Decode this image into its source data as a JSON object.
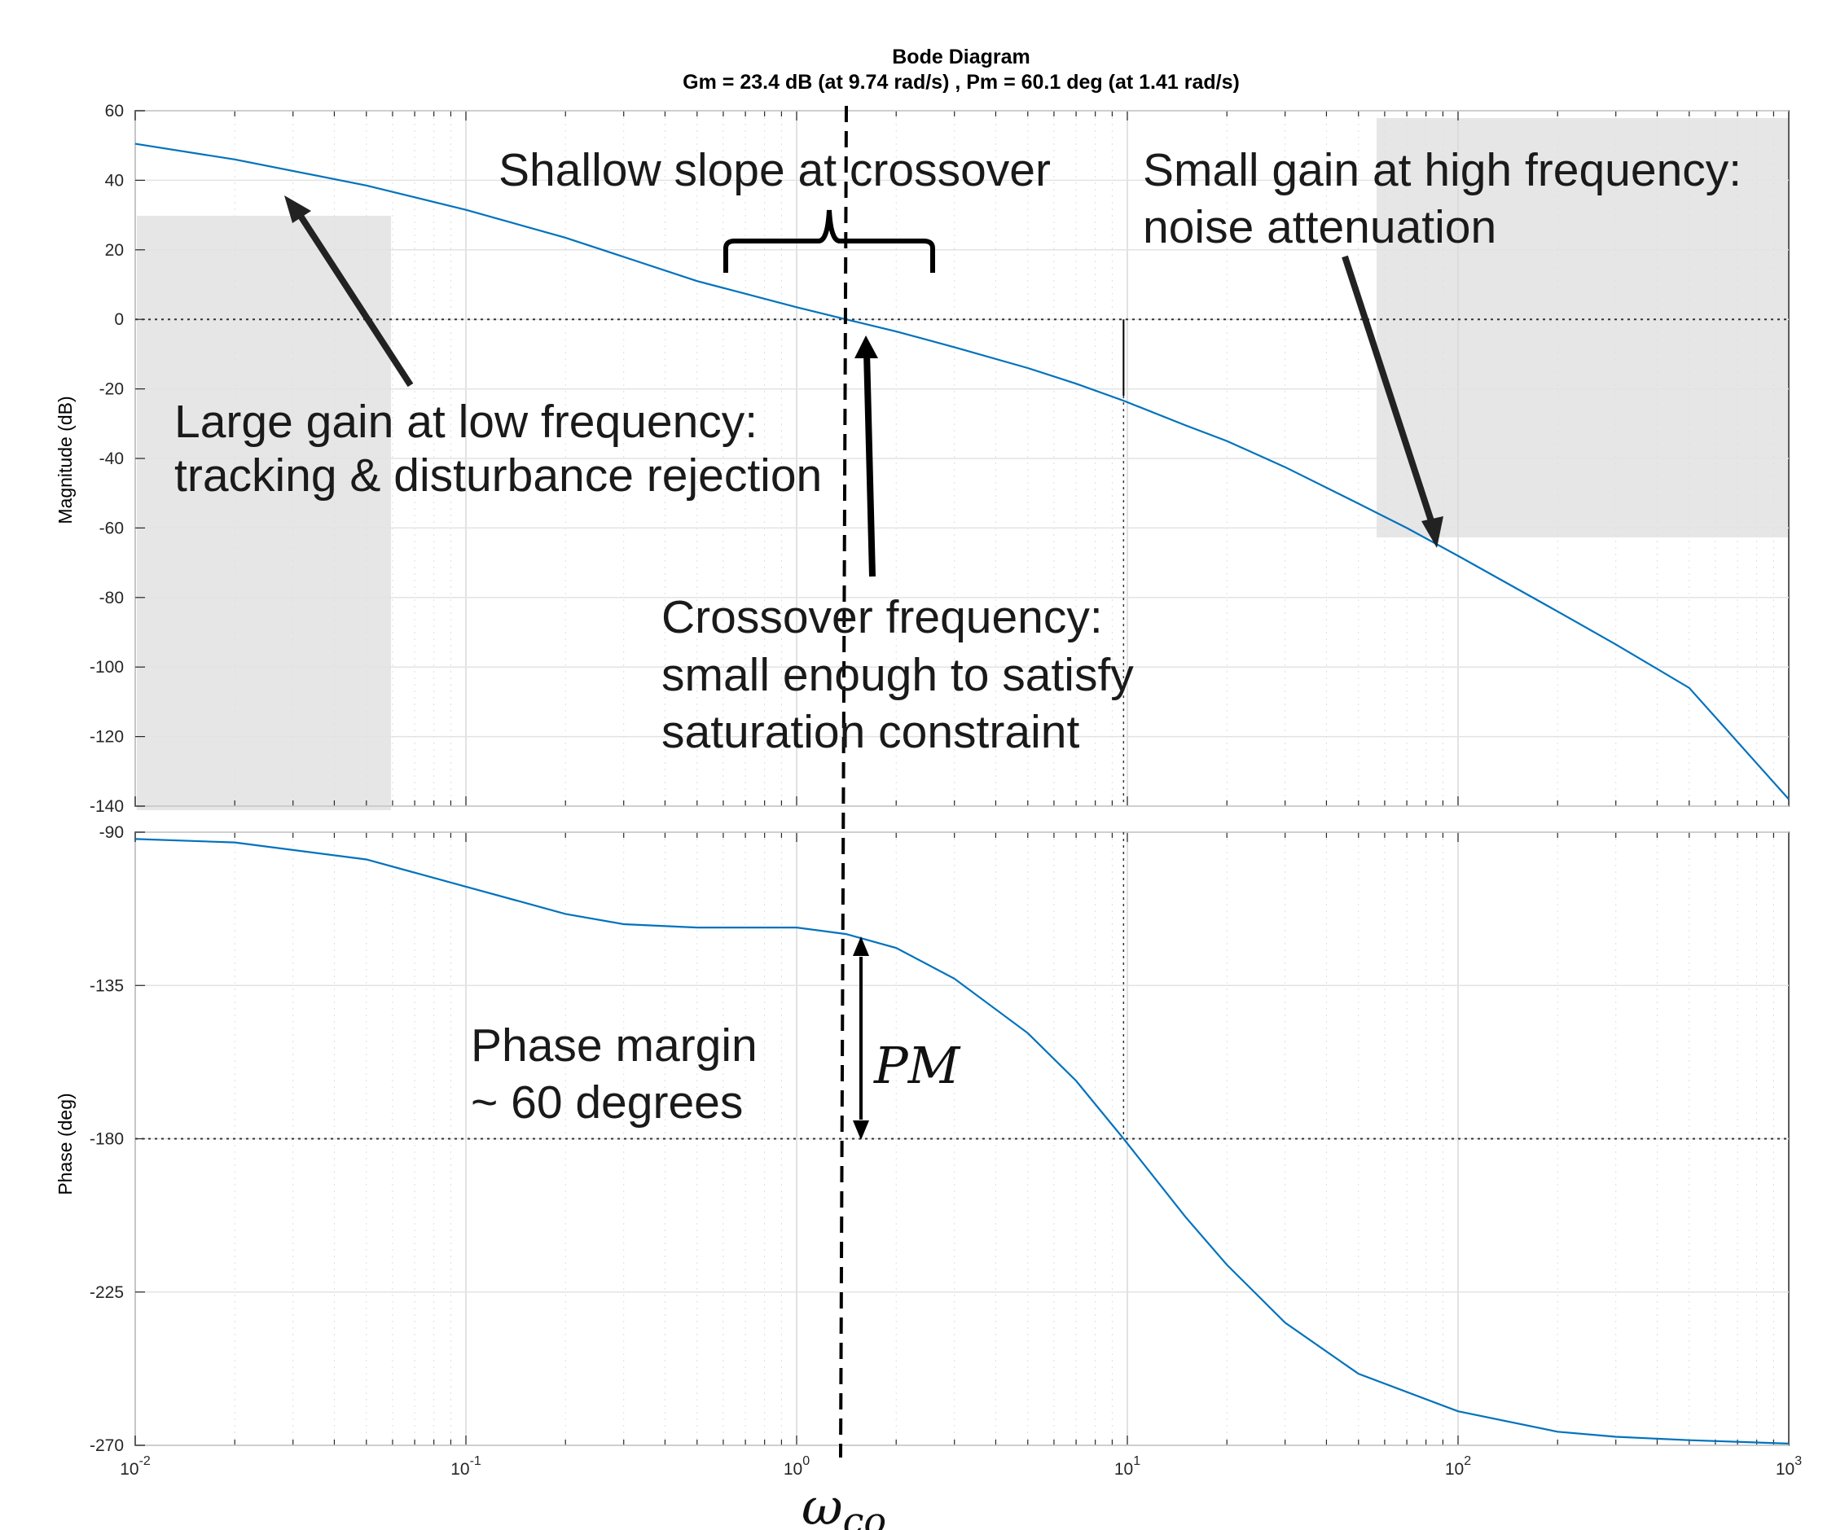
{
  "chart_data": {
    "type": "line",
    "title": "Bode Diagram",
    "subtitle": "Gm = 23.4 dB (at 9.74 rad/s) ,  Pm = 60.1 deg (at 1.41 rad/s)",
    "x_scale": "log",
    "x_tick_labels": [
      "10^-2",
      "10^-1",
      "10^0",
      "10^1",
      "10^2",
      "10^3"
    ],
    "xlim": [
      0.01,
      1000
    ],
    "grid": true,
    "panels": [
      {
        "name": "magnitude",
        "ylabel": "Magnitude (dB)",
        "ylim": [
          -140,
          60
        ],
        "yticks": [
          60,
          40,
          20,
          0,
          -20,
          -40,
          -60,
          -80,
          -100,
          -120,
          -140
        ],
        "reference_line": 0,
        "series": [
          {
            "color": "#0072BD",
            "x": [
              0.01,
              0.02,
              0.05,
              0.1,
              0.2,
              0.5,
              1,
              1.41,
              2,
              3,
              5,
              7,
              9.74,
              15,
              20,
              30,
              50,
              70,
              100,
              200,
              300,
              500,
              1000
            ],
            "y": [
              50.5,
              46,
              38.5,
              31.5,
              23.5,
              11,
              3.5,
              0,
              -3.5,
              -8,
              -14,
              -18.5,
              -23.4,
              -30.5,
              -35,
              -42.5,
              -53,
              -60,
              -68,
              -84,
              -93.5,
              -106,
              -138
            ]
          }
        ]
      },
      {
        "name": "phase",
        "ylabel": "Phase (deg)",
        "ylim": [
          -270,
          -90
        ],
        "yticks": [
          -90,
          -135,
          -180,
          -225,
          -270
        ],
        "reference_line": -180,
        "series": [
          {
            "color": "#0072BD",
            "x": [
              0.01,
              0.02,
              0.05,
              0.1,
              0.2,
              0.3,
              0.5,
              1,
              1.41,
              2,
              3,
              5,
              7,
              9.74,
              15,
              20,
              30,
              50,
              100,
              200,
              300,
              500,
              1000
            ],
            "y": [
              -92,
              -93,
              -98,
              -106,
              -114,
              -117,
              -118,
              -118,
              -119.9,
              -124,
              -133,
              -149,
              -163,
              -180,
              -203,
              -217,
              -234,
              -249,
              -260,
              -266,
              -267.5,
              -268.5,
              -269.5
            ]
          }
        ]
      }
    ],
    "crossover_frequency": 1.41,
    "gain_margin_frequency": 9.74,
    "annotations": [
      {
        "id": "shallow",
        "text": [
          "Shallow slope at crossover"
        ]
      },
      {
        "id": "large_gain",
        "text": [
          "Large gain at low frequency:",
          "tracking & disturbance rejection"
        ]
      },
      {
        "id": "small_gain",
        "text": [
          "Small gain at high frequency:",
          "noise attenuation"
        ]
      },
      {
        "id": "crossover",
        "text": [
          "Crossover frequency:",
          "small enough to satisfy",
          "saturation constraint"
        ]
      },
      {
        "id": "phase_margin",
        "text": [
          "Phase margin",
          "~ 60 degrees"
        ]
      },
      {
        "id": "pm_label",
        "text": [
          "PM"
        ]
      },
      {
        "id": "wco_label",
        "text": [
          "ω",
          "co"
        ]
      }
    ]
  }
}
